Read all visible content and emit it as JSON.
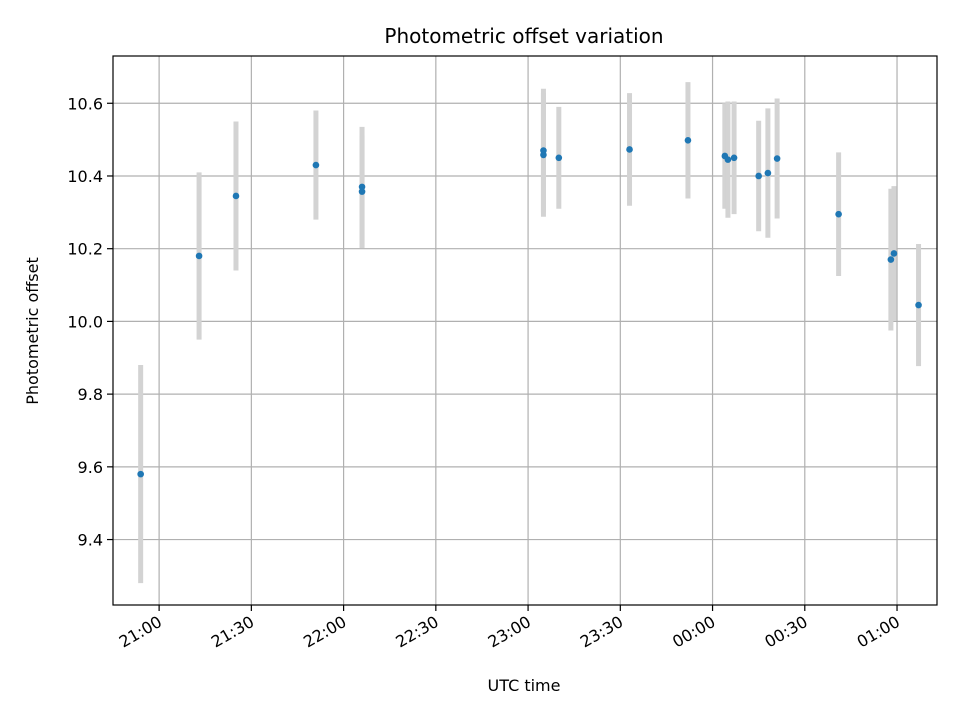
{
  "chart_data": {
    "type": "scatter",
    "title": "Photometric offset variation",
    "xlabel": "UTC time",
    "ylabel": "Photometric offset",
    "x_ticks": [
      "21:00",
      "21:30",
      "22:00",
      "22:30",
      "23:00",
      "23:30",
      "00:00",
      "00:30",
      "01:00"
    ],
    "y_ticks": [
      "9.4",
      "9.6",
      "9.8",
      "10.0",
      "10.2",
      "10.4",
      "10.6"
    ],
    "x_tick_times": [
      "21:00",
      "21:30",
      "22:00",
      "22:30",
      "23:00",
      "23:30",
      "00:00",
      "00:30",
      "01:00"
    ],
    "xlim": [
      "20:45",
      "01:13"
    ],
    "ylim": [
      9.22,
      10.73
    ],
    "grid": true,
    "colors": {
      "point": "#1f77b4",
      "errorbar": "#d3d3d3",
      "grid": "#b0b0b0"
    },
    "points": [
      {
        "x": "20:54",
        "y": 9.58,
        "err": 0.3
      },
      {
        "x": "21:13",
        "y": 10.18,
        "err": 0.23
      },
      {
        "x": "21:25",
        "y": 10.345,
        "err": 0.205
      },
      {
        "x": "21:51",
        "y": 10.43,
        "err": 0.15
      },
      {
        "x": "22:06",
        "y": 10.357,
        "err": 0.155
      },
      {
        "x": "22:06",
        "y": 10.37,
        "err": 0.165
      },
      {
        "x": "23:05",
        "y": 10.458,
        "err": 0.17
      },
      {
        "x": "23:05",
        "y": 10.47,
        "err": 0.17
      },
      {
        "x": "23:10",
        "y": 10.45,
        "err": 0.14
      },
      {
        "x": "23:33",
        "y": 10.473,
        "err": 0.155
      },
      {
        "x": "23:52",
        "y": 10.498,
        "err": 0.16
      },
      {
        "x": "00:04",
        "y": 10.455,
        "err": 0.145
      },
      {
        "x": "00:05",
        "y": 10.445,
        "err": 0.16
      },
      {
        "x": "00:07",
        "y": 10.45,
        "err": 0.155
      },
      {
        "x": "00:15",
        "y": 10.4,
        "err": 0.152
      },
      {
        "x": "00:18",
        "y": 10.408,
        "err": 0.178
      },
      {
        "x": "00:21",
        "y": 10.448,
        "err": 0.165
      },
      {
        "x": "00:41",
        "y": 10.295,
        "err": 0.17
      },
      {
        "x": "00:58",
        "y": 10.17,
        "err": 0.195
      },
      {
        "x": "00:59",
        "y": 10.187,
        "err": 0.185
      },
      {
        "x": "01:07",
        "y": 10.045,
        "err": 0.168
      }
    ]
  }
}
